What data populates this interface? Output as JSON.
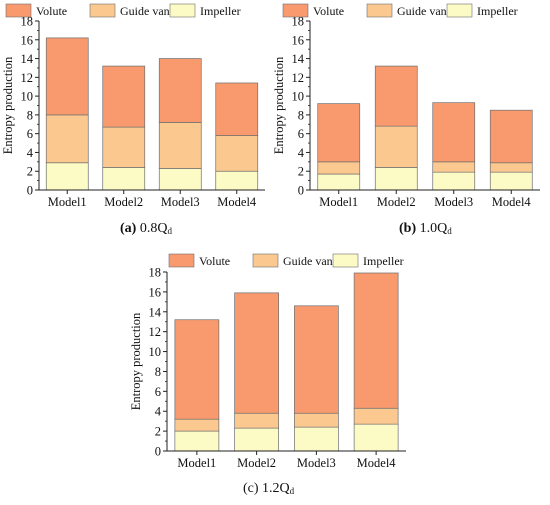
{
  "colors": {
    "volute": "#F99A6E",
    "guide_vane": "#FBC98F",
    "impeller": "#FDFBC5",
    "axis": "#222222",
    "bar_edge": "#6E6E6E"
  },
  "legend": {
    "items": [
      {
        "label": "Volute",
        "color": "#F99A6E"
      },
      {
        "label": "Guide vane",
        "color": "#FBC98F"
      },
      {
        "label": "Impeller",
        "color": "#FDFBC5"
      }
    ]
  },
  "captions": [
    {
      "letter": "(a)",
      "text": "0.8Q",
      "sub": "d"
    },
    {
      "letter": "(b)",
      "text": "1.0Q",
      "sub": "d"
    },
    {
      "letter": "",
      "text": "(c) 1.2Q",
      "sub": "d"
    }
  ],
  "chart_data": [
    {
      "type": "bar",
      "stacked": true,
      "ylabel": "Entropy production",
      "xlabel": "",
      "ylim": [
        0,
        18
      ],
      "yticks": [
        0,
        2,
        4,
        6,
        8,
        10,
        12,
        14,
        16,
        18
      ],
      "categories": [
        "Model1",
        "Model2",
        "Model3",
        "Model4"
      ],
      "series": [
        {
          "name": "Impeller",
          "values": [
            2.9,
            2.4,
            2.3,
            2.0
          ]
        },
        {
          "name": "Guide vane",
          "values": [
            5.1,
            4.3,
            4.9,
            3.8
          ]
        },
        {
          "name": "Volute",
          "values": [
            8.2,
            6.5,
            6.8,
            5.6
          ]
        }
      ],
      "legend_position": "top",
      "grid": false
    },
    {
      "type": "bar",
      "stacked": true,
      "ylabel": "Entropy production",
      "xlabel": "",
      "ylim": [
        0,
        18
      ],
      "yticks": [
        0,
        2,
        4,
        6,
        8,
        10,
        12,
        14,
        16,
        18
      ],
      "categories": [
        "Model1",
        "Model2",
        "Model3",
        "Model4"
      ],
      "series": [
        {
          "name": "Impeller",
          "values": [
            1.7,
            2.4,
            1.9,
            1.9
          ]
        },
        {
          "name": "Guide vane",
          "values": [
            1.3,
            4.4,
            1.1,
            1.0
          ]
        },
        {
          "name": "Volute",
          "values": [
            6.2,
            6.4,
            6.3,
            5.6
          ]
        }
      ],
      "legend_position": "top",
      "grid": false
    },
    {
      "type": "bar",
      "stacked": true,
      "ylabel": "Entropy production",
      "xlabel": "",
      "ylim": [
        0,
        18
      ],
      "yticks": [
        0,
        2,
        4,
        6,
        8,
        10,
        12,
        14,
        16,
        18
      ],
      "categories": [
        "Model1",
        "Model2",
        "Model3",
        "Model4"
      ],
      "series": [
        {
          "name": "Impeller",
          "values": [
            2.0,
            2.3,
            2.4,
            2.7
          ]
        },
        {
          "name": "Guide vane",
          "values": [
            1.2,
            1.5,
            1.4,
            1.6
          ]
        },
        {
          "name": "Volute",
          "values": [
            10.0,
            12.1,
            10.8,
            13.6
          ]
        }
      ],
      "legend_position": "top",
      "grid": false
    }
  ]
}
